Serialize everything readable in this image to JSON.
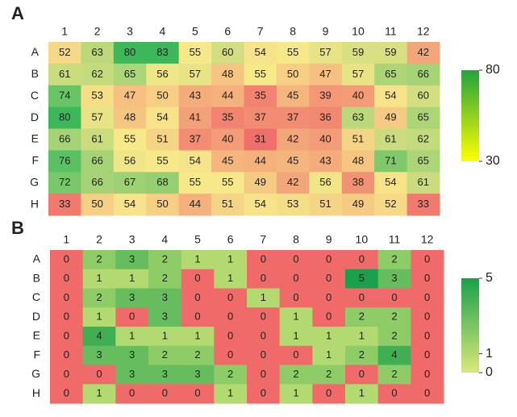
{
  "chart_data": [
    {
      "type": "heatmap",
      "label": "A",
      "x": [
        "1",
        "2",
        "3",
        "4",
        "5",
        "6",
        "7",
        "8",
        "9",
        "10",
        "11",
        "12"
      ],
      "y": [
        "A",
        "B",
        "C",
        "D",
        "E",
        "F",
        "G",
        "H"
      ],
      "values": [
        [
          52,
          63,
          80,
          83,
          55,
          60,
          54,
          55,
          57,
          59,
          59,
          42
        ],
        [
          61,
          62,
          65,
          56,
          57,
          48,
          55,
          50,
          47,
          57,
          65,
          66
        ],
        [
          74,
          53,
          47,
          50,
          43,
          44,
          35,
          45,
          39,
          40,
          54,
          60
        ],
        [
          80,
          57,
          48,
          54,
          41,
          35,
          37,
          37,
          36,
          63,
          49,
          65
        ],
        [
          66,
          61,
          55,
          51,
          37,
          40,
          31,
          42,
          40,
          51,
          61,
          62
        ],
        [
          76,
          66,
          56,
          55,
          54,
          45,
          44,
          45,
          43,
          48,
          71,
          65
        ],
        [
          72,
          66,
          67,
          68,
          55,
          55,
          49,
          42,
          56,
          38,
          54,
          61
        ],
        [
          33,
          50,
          54,
          50,
          44,
          51,
          54,
          53,
          51,
          49,
          52,
          33
        ]
      ],
      "clim": [
        30,
        80
      ],
      "ticks": [
        30,
        80
      ],
      "cell_colors": [
        "#f06a6a",
        "#f7e88a",
        "#3cb85a"
      ],
      "colorbar_colors": [
        "#ffff00",
        "#22a33c"
      ]
    },
    {
      "type": "heatmap",
      "label": "B",
      "x": [
        "1",
        "2",
        "3",
        "4",
        "5",
        "6",
        "7",
        "8",
        "9",
        "10",
        "11",
        "12"
      ],
      "y": [
        "A",
        "B",
        "C",
        "D",
        "E",
        "F",
        "G",
        "H"
      ],
      "values": [
        [
          0,
          2,
          3,
          2,
          1,
          1,
          0,
          0,
          0,
          0,
          2,
          0
        ],
        [
          0,
          1,
          1,
          2,
          0,
          1,
          0,
          0,
          0,
          5,
          3,
          0
        ],
        [
          0,
          2,
          3,
          3,
          0,
          0,
          1,
          0,
          0,
          0,
          0,
          0
        ],
        [
          0,
          1,
          0,
          3,
          0,
          0,
          0,
          1,
          0,
          2,
          2,
          0
        ],
        [
          0,
          4,
          1,
          1,
          1,
          0,
          0,
          1,
          1,
          1,
          2,
          0
        ],
        [
          0,
          3,
          3,
          2,
          2,
          0,
          0,
          0,
          1,
          2,
          4,
          0
        ],
        [
          0,
          0,
          3,
          3,
          3,
          2,
          0,
          2,
          2,
          0,
          2,
          0
        ],
        [
          0,
          1,
          0,
          0,
          0,
          1,
          0,
          1,
          0,
          1,
          0,
          0
        ]
      ],
      "clim": [
        0,
        5
      ],
      "ticks": [
        0,
        1,
        5
      ],
      "zero_color": "#f06a6a",
      "colorbar_colors": [
        "#d9e97a",
        "#1aa04a"
      ]
    }
  ]
}
